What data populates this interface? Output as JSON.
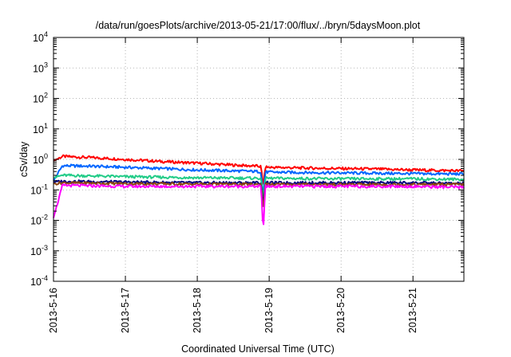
{
  "chart_data": {
    "type": "line",
    "title": "/data/run/goesPlots/archive/2013-05-21/17:00/flux/../bryn/5daysMoon.plot",
    "xlabel": "Coordinated Universal Time (UTC)",
    "ylabel": "cSv/day",
    "xlim": [
      "2013-05-16",
      "2013-05-21T17:00"
    ],
    "ylim": [
      0.0001,
      10000
    ],
    "yscale": "log",
    "grid": true,
    "x_ticks": [
      "2013-5-16",
      "2013-5-17",
      "2013-5-18",
      "2013-5-19",
      "2013-5-20",
      "2013-5-21"
    ],
    "y_ticks": [
      {
        "value": 0.0001,
        "base": "10",
        "exp": "-4"
      },
      {
        "value": 0.001,
        "base": "10",
        "exp": "-3"
      },
      {
        "value": 0.01,
        "base": "10",
        "exp": "-2"
      },
      {
        "value": 0.1,
        "base": "10",
        "exp": "-1"
      },
      {
        "value": 1,
        "base": "10",
        "exp": "0"
      },
      {
        "value": 10,
        "base": "10",
        "exp": "1"
      },
      {
        "value": 100,
        "base": "10",
        "exp": "2"
      },
      {
        "value": 1000,
        "base": "10",
        "exp": "3"
      },
      {
        "value": 10000,
        "base": "10",
        "exp": "4"
      }
    ],
    "dip": {
      "x": "2013-05-18T22:00",
      "width_days": 0.06
    },
    "series": [
      {
        "color": "#ff0000",
        "x": [
          "2013-05-16T00:00",
          "2013-05-16T03:00",
          "2013-05-16T12:00",
          "2013-05-17T00:00",
          "2013-05-17T12:00",
          "2013-05-18T00:00",
          "2013-05-18T12:00",
          "2013-05-18T20:00",
          "2013-05-19T00:00",
          "2013-05-19T12:00",
          "2013-05-20T00:00",
          "2013-05-20T12:00",
          "2013-05-21T00:00",
          "2013-05-21T17:00"
        ],
        "y": [
          0.9,
          1.25,
          1.15,
          1.0,
          0.85,
          0.75,
          0.65,
          0.6,
          0.55,
          0.52,
          0.5,
          0.48,
          0.45,
          0.42
        ],
        "dip_min": 0.12
      },
      {
        "color": "#0066ff",
        "x": [
          "2013-05-16T00:00",
          "2013-05-16T03:00",
          "2013-05-16T12:00",
          "2013-05-17T00:00",
          "2013-05-17T12:00",
          "2013-05-18T00:00",
          "2013-05-18T12:00",
          "2013-05-18T20:00",
          "2013-05-19T00:00",
          "2013-05-19T12:00",
          "2013-05-20T00:00",
          "2013-05-20T12:00",
          "2013-05-21T00:00",
          "2013-05-21T17:00"
        ],
        "y": [
          0.2,
          0.62,
          0.6,
          0.55,
          0.5,
          0.45,
          0.42,
          0.4,
          0.38,
          0.37,
          0.36,
          0.35,
          0.34,
          0.33
        ],
        "dip_min": 0.06
      },
      {
        "color": "#22cc88",
        "x": [
          "2013-05-16T00:00",
          "2013-05-16T03:00",
          "2013-05-17T00:00",
          "2013-05-18T00:00",
          "2013-05-19T00:00",
          "2013-05-20T00:00",
          "2013-05-21T00:00",
          "2013-05-21T17:00"
        ],
        "y": [
          0.25,
          0.3,
          0.27,
          0.25,
          0.24,
          0.23,
          0.23,
          0.22
        ],
        "dip_min": 0.05
      },
      {
        "color": "#000080",
        "x": [
          "2013-05-16T00:00",
          "2013-05-16T03:00",
          "2013-05-17T00:00",
          "2013-05-18T00:00",
          "2013-05-19T00:00",
          "2013-05-20T00:00",
          "2013-05-21T00:00",
          "2013-05-21T17:00"
        ],
        "y": [
          0.18,
          0.19,
          0.18,
          0.17,
          0.17,
          0.17,
          0.17,
          0.16
        ],
        "dip_min": 0.03
      },
      {
        "color": "#8b4513",
        "x": [
          "2013-05-16T00:00",
          "2013-05-16T03:00",
          "2013-05-17T00:00",
          "2013-05-18T00:00",
          "2013-05-19T00:00",
          "2013-05-20T00:00",
          "2013-05-21T00:00",
          "2013-05-21T17:00"
        ],
        "y": [
          0.16,
          0.17,
          0.16,
          0.155,
          0.15,
          0.15,
          0.15,
          0.15
        ],
        "dip_min": 0.02
      },
      {
        "color": "#ff00ff",
        "x": [
          "2013-05-16T00:00",
          "2013-05-16T03:00",
          "2013-05-17T00:00",
          "2013-05-18T00:00",
          "2013-05-19T00:00",
          "2013-05-20T00:00",
          "2013-05-21T00:00",
          "2013-05-21T17:00"
        ],
        "y": [
          0.012,
          0.14,
          0.13,
          0.13,
          0.13,
          0.13,
          0.13,
          0.12
        ],
        "dip_min": 0.004
      }
    ]
  }
}
